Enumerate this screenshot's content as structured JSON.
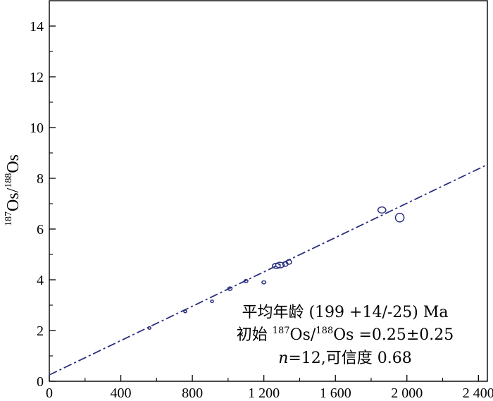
{
  "chart_data": {
    "type": "scatter",
    "title": "",
    "xlabel": "",
    "ylabel": {
      "sup1": "187",
      "main1": "Os/",
      "sup2": "188",
      "main2": "Os"
    },
    "xlim": [
      0,
      2450
    ],
    "ylim": [
      0,
      15
    ],
    "x_ticks": [
      0,
      400,
      800,
      1200,
      1600,
      2000,
      2400
    ],
    "x_tick_labels": [
      "0",
      "400",
      "800",
      "1 200",
      "1 600",
      "2 000",
      "2 400"
    ],
    "y_ticks": [
      0,
      2,
      4,
      6,
      8,
      10,
      12,
      14
    ],
    "y_tick_labels": [
      "0",
      "2",
      "4",
      "6",
      "8",
      "10",
      "12",
      "14"
    ],
    "grid": false,
    "series_color": "#2b2f7f",
    "points": [
      {
        "x": 560,
        "y": 2.1,
        "ex": 8,
        "ey": 0.05
      },
      {
        "x": 760,
        "y": 2.75,
        "ex": 8,
        "ey": 0.05
      },
      {
        "x": 910,
        "y": 3.15,
        "ex": 8,
        "ey": 0.05
      },
      {
        "x": 1010,
        "y": 3.65,
        "ex": 12,
        "ey": 0.07
      },
      {
        "x": 1100,
        "y": 3.95,
        "ex": 11,
        "ey": 0.06
      },
      {
        "x": 1200,
        "y": 3.9,
        "ex": 11,
        "ey": 0.06
      },
      {
        "x": 1270,
        "y": 4.55,
        "ex": 22,
        "ey": 0.1
      },
      {
        "x": 1290,
        "y": 4.58,
        "ex": 24,
        "ey": 0.11
      },
      {
        "x": 1320,
        "y": 4.62,
        "ex": 15,
        "ey": 0.09
      },
      {
        "x": 1340,
        "y": 4.7,
        "ex": 15,
        "ey": 0.09
      },
      {
        "x": 1860,
        "y": 6.75,
        "ex": 22,
        "ey": 0.12
      },
      {
        "x": 1960,
        "y": 6.45,
        "ex": 24,
        "ey": 0.17
      }
    ],
    "isochron": {
      "x": [
        0,
        2450
      ],
      "y": [
        0.25,
        8.54
      ]
    },
    "annotation": {
      "line1": "平均年龄 (199  +14/-25) Ma",
      "line2_pre": "初始 ",
      "line2_sup1": "187",
      "line2_mid": "Os/",
      "line2_sup2": "188",
      "line2_post": "Os =0.25±0.25",
      "line3_n": "n",
      "line3_rest": "=12,可信度 0.68"
    }
  }
}
